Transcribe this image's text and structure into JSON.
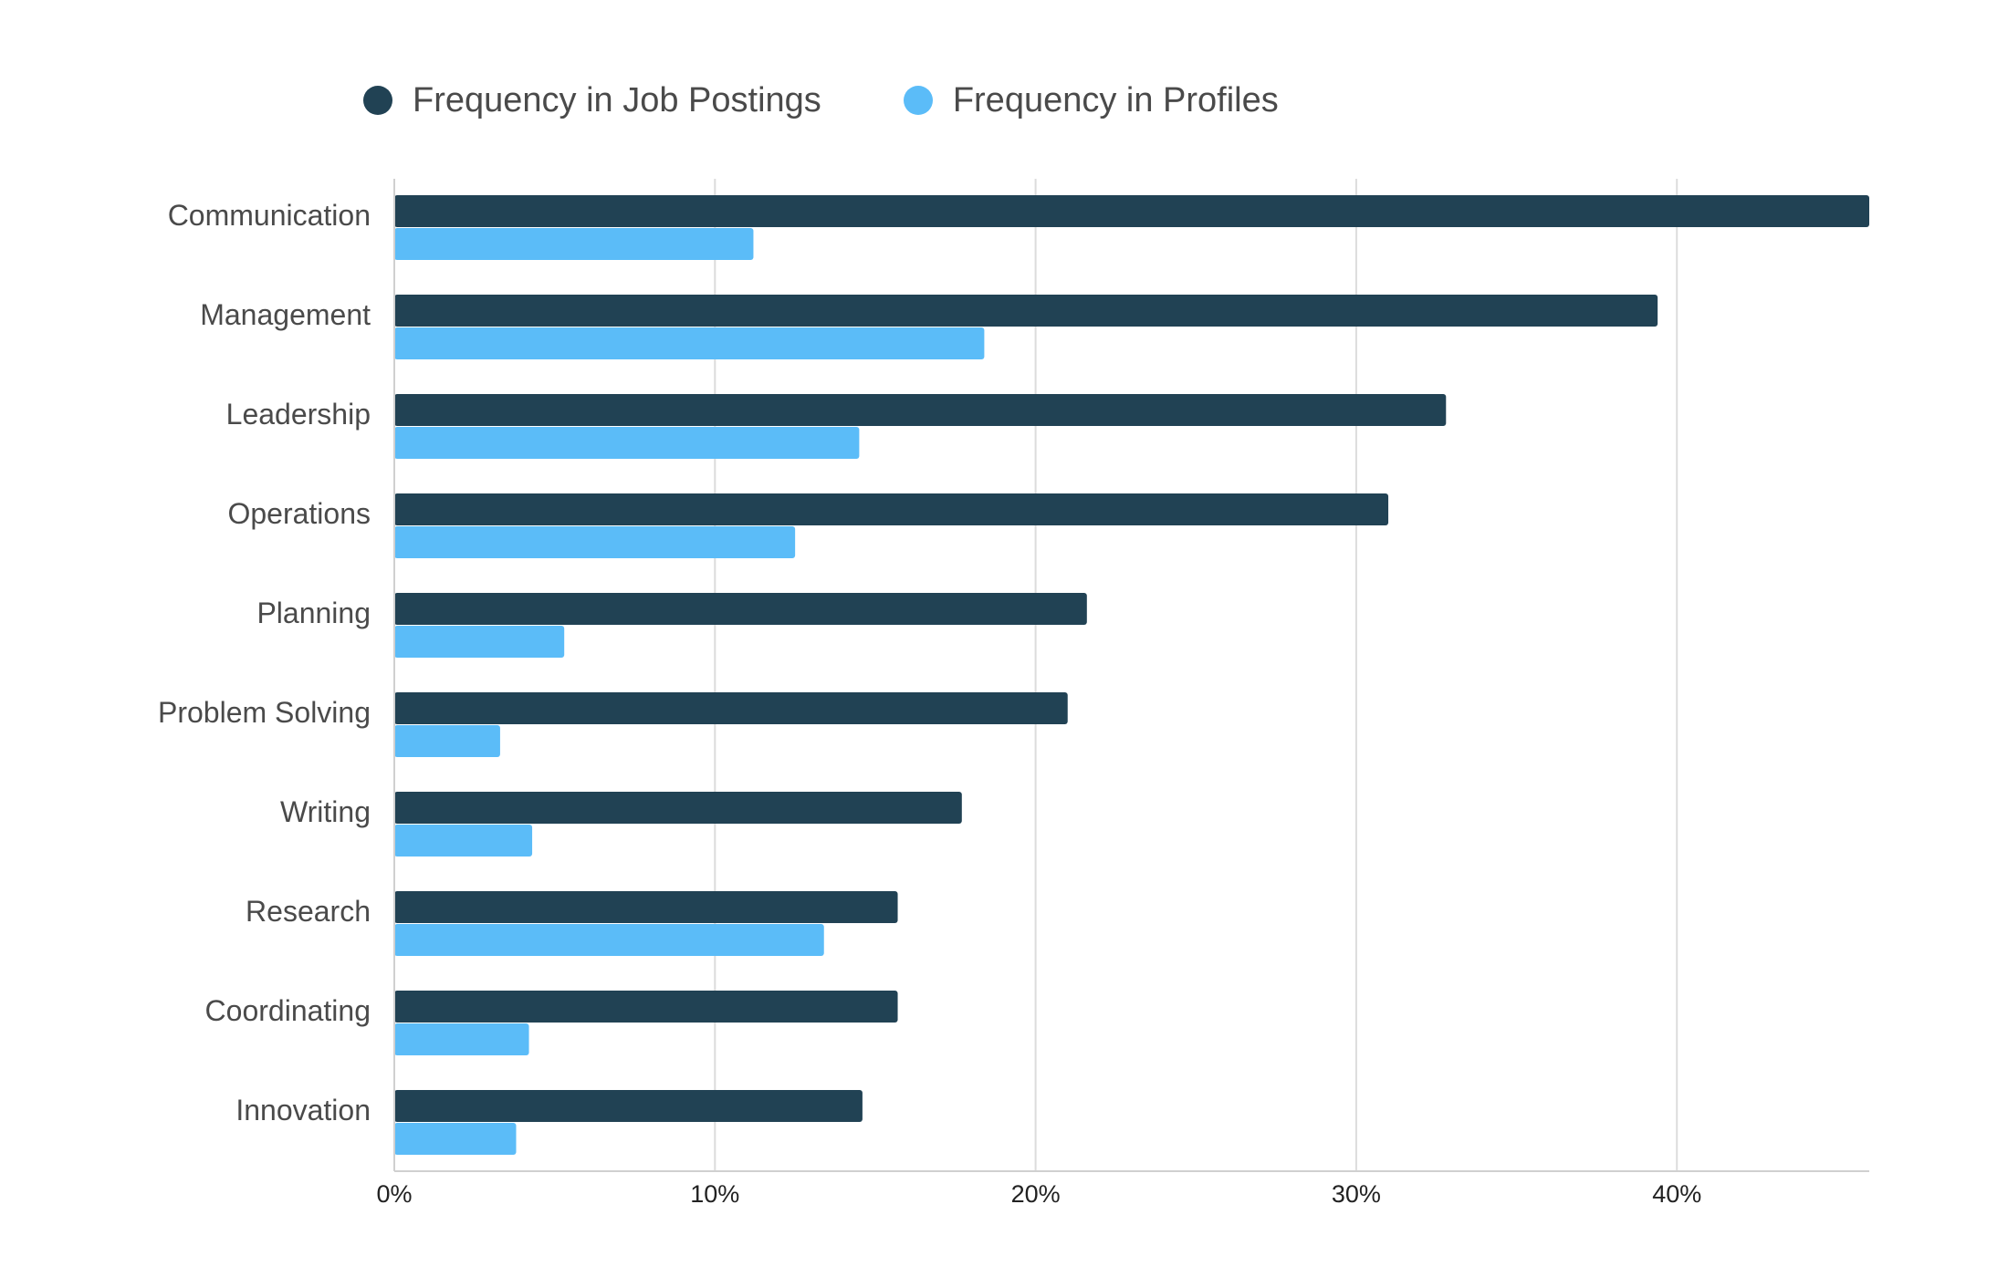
{
  "chart_data": {
    "type": "bar",
    "orientation": "horizontal",
    "categories": [
      "Communication",
      "Management",
      "Leadership",
      "Operations",
      "Planning",
      "Problem Solving",
      "Writing",
      "Research",
      "Coordinating",
      "Innovation"
    ],
    "series": [
      {
        "name": "Frequency in Job Postings",
        "color": "#214254",
        "values": [
          46.0,
          39.4,
          32.8,
          31.0,
          21.6,
          21.0,
          17.7,
          15.7,
          15.7,
          14.6
        ]
      },
      {
        "name": "Frequency in Profiles",
        "color": "#5bbcf8",
        "values": [
          11.2,
          18.4,
          14.5,
          12.5,
          5.3,
          3.3,
          4.3,
          13.4,
          4.2,
          3.8
        ]
      }
    ],
    "x_ticks": [
      0,
      10,
      20,
      30,
      40
    ],
    "x_tick_labels": [
      "0%",
      "10%",
      "20%",
      "30%",
      "40%"
    ],
    "xlim": [
      0,
      46
    ],
    "xlabel": "",
    "ylabel": "",
    "title": "",
    "grid": "vertical",
    "legend_position": "top-left"
  }
}
